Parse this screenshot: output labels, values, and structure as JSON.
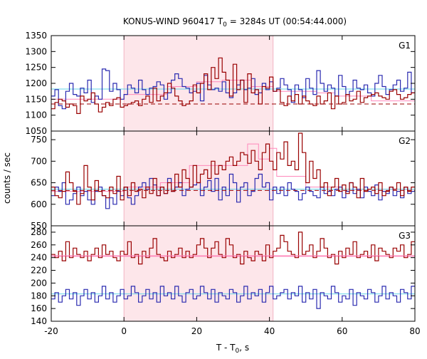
{
  "chart_data": {
    "type": "line",
    "title": {
      "main": "KONUS-WIND 960417 T",
      "sub": "0",
      "rest": " = 3284s UT (00:54:44.000)"
    },
    "xlabel": {
      "main": "T - T",
      "sub": "0",
      "rest": ", s"
    },
    "ylabel": "counts / sec",
    "xlim": [
      -20,
      80
    ],
    "xticks": [
      "-20",
      "0",
      "20",
      "40",
      "60",
      "80"
    ],
    "highlight_interval": [
      0,
      41
    ],
    "colors": {
      "red": "#990000",
      "blue": "#2a2ab0",
      "pink": "#ff88bb",
      "cyan": "#66d4e8",
      "shade": "#fde6ea"
    },
    "panels": [
      {
        "label": "G1",
        "ylim": [
          1050,
          1350
        ],
        "yticks": [
          "1050",
          "1100",
          "1150",
          "1200",
          "1250",
          "1300",
          "1350"
        ],
        "red_bg": 1135,
        "blue_bg": 1182,
        "red_series": [
          1120,
          1140,
          1150,
          1145,
          1125,
          1135,
          1130,
          1105,
          1160,
          1145,
          1150,
          1170,
          1135,
          1110,
          1125,
          1140,
          1130,
          1150,
          1155,
          1125,
          1130,
          1135,
          1140,
          1145,
          1130,
          1150,
          1160,
          1140,
          1185,
          1145,
          1160,
          1170,
          1200,
          1185,
          1160,
          1145,
          1130,
          1135,
          1145,
          1195,
          1170,
          1200,
          1230,
          1180,
          1250,
          1215,
          1280,
          1235,
          1210,
          1160,
          1260,
          1180,
          1210,
          1140,
          1230,
          1170,
          1180,
          1135,
          1190,
          1185,
          1220,
          1175,
          1180,
          1140,
          1130,
          1160,
          1145,
          1165,
          1135,
          1160,
          1145,
          1135,
          1130,
          1160,
          1135,
          1145,
          1170,
          1120,
          1160,
          1135,
          1140,
          1165,
          1145,
          1150,
          1175,
          1140,
          1155,
          1160,
          1165,
          1170,
          1160,
          1155,
          1150,
          1175,
          1180,
          1165,
          1150,
          1155,
          1165,
          1170
        ],
        "blue_series": [
          1160,
          1180,
          1130,
          1120,
          1175,
          1200,
          1165,
          1160,
          1185,
          1170,
          1210,
          1140,
          1160,
          1150,
          1245,
          1240,
          1175,
          1200,
          1180,
          1150,
          1165,
          1195,
          1185,
          1170,
          1210,
          1180,
          1165,
          1185,
          1190,
          1205,
          1195,
          1150,
          1170,
          1210,
          1230,
          1215,
          1190,
          1185,
          1170,
          1175,
          1200,
          1145,
          1225,
          1195,
          1180,
          1185,
          1175,
          1205,
          1170,
          1155,
          1170,
          1195,
          1210,
          1180,
          1185,
          1215,
          1165,
          1170,
          1200,
          1180,
          1205,
          1175,
          1185,
          1215,
          1195,
          1180,
          1140,
          1195,
          1180,
          1155,
          1215,
          1185,
          1165,
          1240,
          1200,
          1175,
          1195,
          1185,
          1160,
          1225,
          1190,
          1165,
          1175,
          1210,
          1185,
          1180,
          1195,
          1170,
          1160,
          1200,
          1225,
          1190,
          1165,
          1180,
          1195,
          1210,
          1175,
          1185,
          1235,
          1170
        ],
        "pink_steps": [
          [
            -20,
            1150
          ],
          [
            0,
            1165
          ],
          [
            12,
            1190
          ],
          [
            20,
            1205
          ],
          [
            27,
            1210
          ],
          [
            35,
            1190
          ],
          [
            41,
            1175
          ],
          [
            53,
            1170
          ],
          [
            58,
            1160
          ],
          [
            68,
            1145
          ],
          [
            80,
            1150
          ]
        ]
      },
      {
        "label": "G2",
        "ylim": [
          550,
          770
        ],
        "yticks": [
          "550",
          "600",
          "650",
          "700",
          "750"
        ],
        "red_bg": 632,
        "blue_bg": 635,
        "red_series": [
          640,
          620,
          615,
          630,
          675,
          650,
          630,
          600,
          625,
          690,
          640,
          610,
          655,
          630,
          620,
          615,
          640,
          625,
          665,
          610,
          640,
          620,
          650,
          630,
          635,
          615,
          640,
          625,
          660,
          620,
          640,
          625,
          650,
          630,
          670,
          640,
          680,
          660,
          640,
          690,
          650,
          670,
          680,
          660,
          700,
          670,
          690,
          680,
          700,
          710,
          690,
          700,
          720,
          715,
          695,
          725,
          700,
          680,
          720,
          740,
          700,
          680,
          720,
          705,
          745,
          690,
          700,
          680,
          765,
          720,
          650,
          700,
          660,
          680,
          640,
          650,
          620,
          640,
          660,
          630,
          645,
          625,
          650,
          640,
          615,
          660,
          630,
          635,
          640,
          625,
          650,
          620,
          630,
          640,
          635,
          650,
          620,
          640,
          630,
          640
        ],
        "blue_series": [
          620,
          640,
          630,
          650,
          600,
          610,
          625,
          640,
          620,
          630,
          610,
          600,
          630,
          640,
          620,
          590,
          615,
          600,
          630,
          620,
          640,
          615,
          600,
          620,
          640,
          650,
          635,
          660,
          645,
          620,
          640,
          625,
          660,
          630,
          640,
          650,
          620,
          635,
          640,
          645,
          650,
          620,
          640,
          655,
          630,
          660,
          610,
          640,
          620,
          670,
          650,
          605,
          640,
          650,
          620,
          630,
          660,
          670,
          640,
          650,
          610,
          640,
          625,
          640,
          620,
          650,
          635,
          630,
          610,
          625,
          640,
          630,
          620,
          615,
          640,
          625,
          630,
          620,
          635,
          640,
          615,
          630,
          650,
          625,
          635,
          615,
          640,
          630,
          620,
          645,
          610,
          630,
          625,
          640,
          620,
          630,
          615,
          640,
          625,
          630
        ],
        "pink_steps": [
          [
            -20,
            630
          ],
          [
            0,
            640
          ],
          [
            10,
            650
          ],
          [
            18,
            690
          ],
          [
            32,
            690
          ],
          [
            34,
            740
          ],
          [
            37,
            705
          ],
          [
            40,
            730
          ],
          [
            42,
            665
          ],
          [
            50,
            640
          ],
          [
            60,
            635
          ],
          [
            80,
            630
          ]
        ]
      },
      {
        "label": "G3",
        "ylim": [
          140,
          290
        ],
        "yticks": [
          "140",
          "160",
          "180",
          "200",
          "220",
          "240",
          "260",
          "280"
        ],
        "red_bg": 243,
        "blue_bg": 183,
        "red_series": [
          245,
          240,
          250,
          235,
          265,
          240,
          255,
          245,
          240,
          250,
          235,
          245,
          255,
          240,
          260,
          245,
          250,
          240,
          235,
          250,
          245,
          265,
          240,
          245,
          230,
          250,
          240,
          255,
          270,
          245,
          240,
          235,
          250,
          240,
          245,
          255,
          240,
          250,
          240,
          245,
          260,
          270,
          255,
          240,
          255,
          265,
          245,
          240,
          270,
          260,
          240,
          245,
          230,
          250,
          240,
          235,
          250,
          245,
          235,
          260,
          240,
          250,
          255,
          275,
          265,
          250,
          245,
          240,
          280,
          245,
          250,
          260,
          240,
          250,
          270,
          255,
          240,
          245,
          230,
          250,
          240,
          255,
          245,
          265,
          240,
          245,
          250,
          240,
          260,
          235,
          255,
          250,
          245,
          240,
          255,
          250,
          260,
          240,
          245,
          265
        ],
        "blue_series": [
          175,
          185,
          170,
          180,
          190,
          175,
          185,
          165,
          180,
          190,
          175,
          185,
          170,
          180,
          195,
          175,
          185,
          170,
          180,
          190,
          175,
          180,
          195,
          185,
          170,
          180,
          190,
          175,
          185,
          170,
          195,
          180,
          185,
          175,
          195,
          180,
          170,
          185,
          190,
          175,
          180,
          195,
          185,
          175,
          190,
          170,
          185,
          180,
          175,
          190,
          185,
          170,
          180,
          195,
          175,
          185,
          180,
          190,
          170,
          185,
          195,
          175,
          180,
          185,
          190,
          175,
          185,
          180,
          195,
          170,
          185,
          175,
          190,
          160,
          185,
          180,
          175,
          195,
          185,
          170,
          180,
          175,
          190,
          165,
          185,
          180,
          175,
          190,
          185,
          170,
          180,
          195,
          175,
          185,
          180,
          170,
          190,
          185,
          175,
          195
        ],
        "pink_steps": [
          [
            -20,
            242
          ],
          [
            80,
            242
          ]
        ]
      }
    ]
  }
}
